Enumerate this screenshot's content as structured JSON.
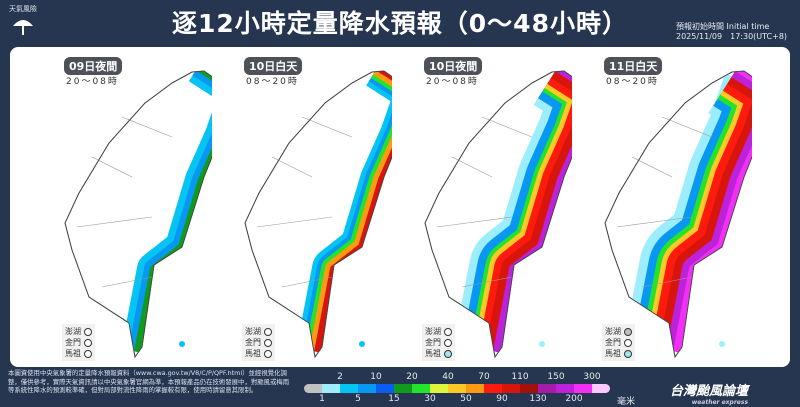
{
  "header": {
    "title": "逐12小時定量降水預報（0～48小時）",
    "logo_text": "天氣風險",
    "init_label": "預報初始時間 Initial time",
    "init_value": "2025/11/09　17:30(UTC+8)"
  },
  "panels": [
    {
      "label": "09日夜間",
      "hours": "20～08時",
      "islands": [
        {
          "name": "澎湖",
          "color": "#ffffff"
        },
        {
          "name": "金門",
          "color": "#ffffff"
        },
        {
          "name": "馬祖",
          "color": "#ffffff"
        }
      ]
    },
    {
      "label": "10日白天",
      "hours": "08～20時",
      "islands": [
        {
          "name": "澎湖",
          "color": "#ffffff"
        },
        {
          "name": "金門",
          "color": "#ffffff"
        },
        {
          "name": "馬祖",
          "color": "#ffffff"
        }
      ]
    },
    {
      "label": "10日夜間",
      "hours": "20～08時",
      "islands": [
        {
          "name": "澎湖",
          "color": "#ffffff"
        },
        {
          "name": "金門",
          "color": "#ffffff"
        },
        {
          "name": "馬祖",
          "color": "#9ee8ef"
        }
      ]
    },
    {
      "label": "11日白天",
      "hours": "08～20時",
      "islands": [
        {
          "name": "澎湖",
          "color": "#bdbdbd"
        },
        {
          "name": "金門",
          "color": "#ffffff"
        },
        {
          "name": "馬祖",
          "color": "#9ee8ef"
        }
      ]
    }
  ],
  "footer": {
    "note": "本圖資使用中央氣象署的定量降水預報資料（www.cwa.gov.tw/V8/C/P/QPF.html）並經視覺化調整，僅供參考，實際天氣資訊請以中央氣象署官網為準，本預報產品仍在技術發展中，對颱風或梅雨等系統性降水的預測較準確，但對局部對流性降雨的掌握較有限，使用時請留意其限制。"
  },
  "legend": {
    "top_labels": [
      "2",
      "10",
      "20",
      "40",
      "70",
      "110",
      "150",
      "300"
    ],
    "bottom_labels": [
      "1",
      "5",
      "15",
      "30",
      "50",
      "90",
      "130",
      "200"
    ],
    "unit": "毫米",
    "colors": [
      "#c1c1c1",
      "#9ceefe",
      "#05c4f4",
      "#0897f1",
      "#0c5cf2",
      "#109b1d",
      "#22e52b",
      "#ddf53b",
      "#fec927",
      "#fd9a12",
      "#fc1b0c",
      "#d8150c",
      "#a4110d",
      "#a51ca8",
      "#bd22db",
      "#f32ef5",
      "#fcc9fc"
    ]
  },
  "brand": {
    "name": "台灣颱風論壇",
    "sub": "weather express"
  }
}
